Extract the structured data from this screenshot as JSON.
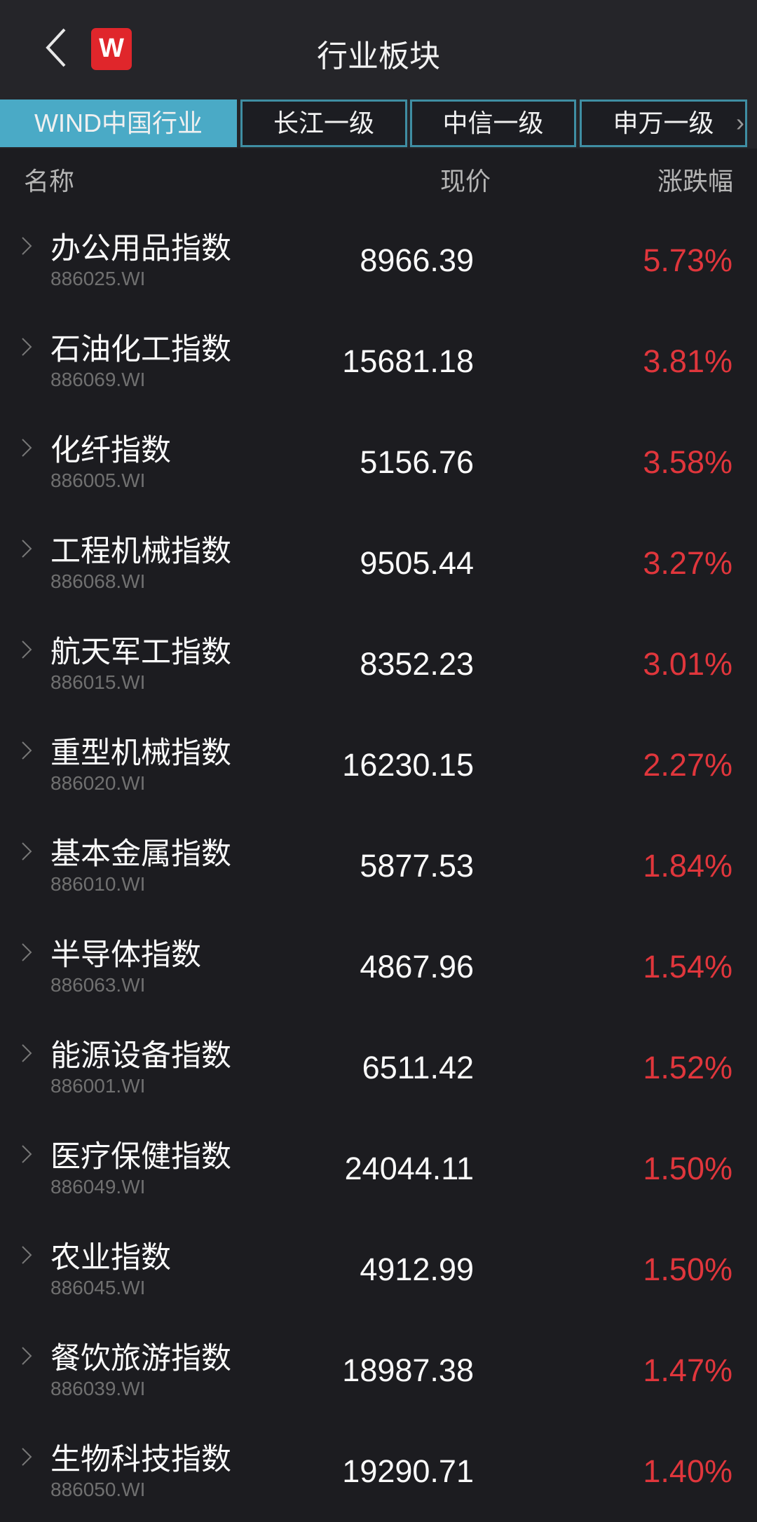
{
  "header": {
    "title": "行业板块",
    "logo_text": "W"
  },
  "tabs": [
    {
      "label": "WIND中国行业",
      "active": true
    },
    {
      "label": "长江一级"
    },
    {
      "label": "中信一级"
    },
    {
      "label": "申万一级"
    }
  ],
  "tabs_more": "›",
  "columns": {
    "name": "名称",
    "price": "现价",
    "change": "涨跌幅"
  },
  "colors": {
    "up": "#e0363c",
    "active_tab": "#4aaac6"
  },
  "rows": [
    {
      "name": "办公用品指数",
      "code": "886025.WI",
      "price": "8966.39",
      "change": "5.73%"
    },
    {
      "name": "石油化工指数",
      "code": "886069.WI",
      "price": "15681.18",
      "change": "3.81%"
    },
    {
      "name": "化纤指数",
      "code": "886005.WI",
      "price": "5156.76",
      "change": "3.58%"
    },
    {
      "name": "工程机械指数",
      "code": "886068.WI",
      "price": "9505.44",
      "change": "3.27%"
    },
    {
      "name": "航天军工指数",
      "code": "886015.WI",
      "price": "8352.23",
      "change": "3.01%"
    },
    {
      "name": "重型机械指数",
      "code": "886020.WI",
      "price": "16230.15",
      "change": "2.27%"
    },
    {
      "name": "基本金属指数",
      "code": "886010.WI",
      "price": "5877.53",
      "change": "1.84%"
    },
    {
      "name": "半导体指数",
      "code": "886063.WI",
      "price": "4867.96",
      "change": "1.54%"
    },
    {
      "name": "能源设备指数",
      "code": "886001.WI",
      "price": "6511.42",
      "change": "1.52%"
    },
    {
      "name": "医疗保健指数",
      "code": "886049.WI",
      "price": "24044.11",
      "change": "1.50%"
    },
    {
      "name": "农业指数",
      "code": "886045.WI",
      "price": "4912.99",
      "change": "1.50%"
    },
    {
      "name": "餐饮旅游指数",
      "code": "886039.WI",
      "price": "18987.38",
      "change": "1.47%"
    },
    {
      "name": "生物科技指数",
      "code": "886050.WI",
      "price": "19290.71",
      "change": "1.40%"
    }
  ]
}
